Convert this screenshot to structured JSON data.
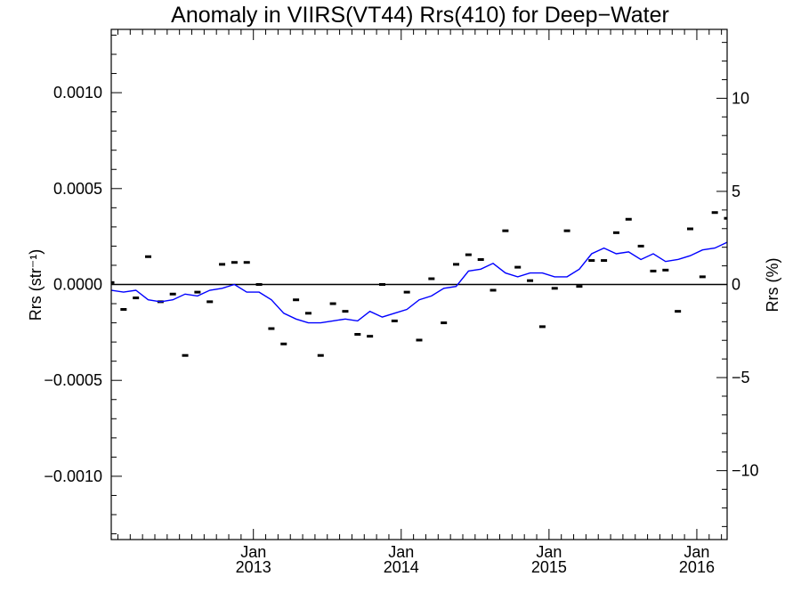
{
  "chart_data": {
    "type": "scatter",
    "title": "Anomaly in VIIRS(VT44) Rrs(410) for Deep−Water",
    "ylabel": "Rrs (str⁻¹)",
    "ylabel_right": "Rrs (%)",
    "xlim": [
      "2012-01-15",
      "2016-03-15"
    ],
    "ylim": [
      -0.00133,
      0.00133
    ],
    "ylim_right": [
      -13.7,
      13.7
    ],
    "x_ticks": [
      {
        "date": "2013-01-01",
        "label_month": "Jan",
        "label_year": "2013"
      },
      {
        "date": "2014-01-01",
        "label_month": "Jan",
        "label_year": "2014"
      },
      {
        "date": "2015-01-01",
        "label_month": "Jan",
        "label_year": "2015"
      },
      {
        "date": "2016-01-01",
        "label_month": "Jan",
        "label_year": "2016"
      }
    ],
    "y_ticks": [
      {
        "value": 0.001,
        "label": "0.0010"
      },
      {
        "value": 0.0005,
        "label": "0.0005"
      },
      {
        "value": 0,
        "label": "0.0000"
      },
      {
        "value": -0.0005,
        "label": "−0.0005"
      },
      {
        "value": -0.001,
        "label": "−0.0010"
      }
    ],
    "y_ticks_right": [
      {
        "value": 10,
        "label": "10"
      },
      {
        "value": 5,
        "label": "5"
      },
      {
        "value": 0,
        "label": "0"
      },
      {
        "value": -5,
        "label": "−5"
      },
      {
        "value": -10,
        "label": "−10"
      }
    ],
    "reference_line": 0,
    "grid": false,
    "series": [
      {
        "kind": "points",
        "color": "#000000",
        "x": [
          "2012-01",
          "2012-02",
          "2012-03",
          "2012-04",
          "2012-05",
          "2012-06",
          "2012-07",
          "2012-08",
          "2012-09",
          "2012-10",
          "2012-11",
          "2012-12",
          "2013-01",
          "2013-02",
          "2013-03",
          "2013-04",
          "2013-05",
          "2013-06",
          "2013-07",
          "2013-08",
          "2013-09",
          "2013-10",
          "2013-11",
          "2013-12",
          "2014-01",
          "2014-02",
          "2014-03",
          "2014-04",
          "2014-05",
          "2014-06",
          "2014-07",
          "2014-08",
          "2014-09",
          "2014-10",
          "2014-11",
          "2014-12",
          "2015-01",
          "2015-02",
          "2015-03",
          "2015-04",
          "2015-05",
          "2015-06",
          "2015-07",
          "2015-08",
          "2015-09",
          "2015-10",
          "2015-11",
          "2015-12",
          "2016-01",
          "2016-02",
          "2016-03"
        ],
        "y": [
          1e-05,
          -0.00013,
          -7e-05,
          0.000145,
          -9e-05,
          -5e-05,
          -0.00037,
          -4e-05,
          -9e-05,
          0.000105,
          0.000115,
          0.000115,
          0,
          -0.00023,
          -0.00031,
          -8e-05,
          -0.00015,
          -0.00037,
          -0.0001,
          -0.00014,
          -0.00026,
          -0.00027,
          0,
          -0.00019,
          -4e-05,
          -0.00029,
          3e-05,
          -0.0002,
          0.000105,
          0.000155,
          0.00013,
          -3e-05,
          0.00028,
          9e-05,
          2e-05,
          -0.00022,
          -2e-05,
          0.00028,
          -1e-05,
          0.000125,
          0.000125,
          0.00027,
          0.00034,
          0.0002,
          7e-05,
          7.5e-05,
          -0.00014,
          0.00029,
          4e-05,
          0.000375,
          0.000345
        ]
      },
      {
        "kind": "line",
        "color": "#0000ff",
        "x": [
          "2012-01",
          "2012-02",
          "2012-03",
          "2012-04",
          "2012-05",
          "2012-06",
          "2012-07",
          "2012-08",
          "2012-09",
          "2012-10",
          "2012-11",
          "2012-12",
          "2013-01",
          "2013-02",
          "2013-03",
          "2013-04",
          "2013-05",
          "2013-06",
          "2013-07",
          "2013-08",
          "2013-09",
          "2013-10",
          "2013-11",
          "2013-12",
          "2014-01",
          "2014-02",
          "2014-03",
          "2014-04",
          "2014-05",
          "2014-06",
          "2014-07",
          "2014-08",
          "2014-09",
          "2014-10",
          "2014-11",
          "2014-12",
          "2015-01",
          "2015-02",
          "2015-03",
          "2015-04",
          "2015-05",
          "2015-06",
          "2015-07",
          "2015-08",
          "2015-09",
          "2015-10",
          "2015-11",
          "2015-12",
          "2016-01",
          "2016-02",
          "2016-03"
        ],
        "y": [
          -3e-05,
          -4e-05,
          -3e-05,
          -8e-05,
          -9e-05,
          -8e-05,
          -5e-05,
          -6e-05,
          -3e-05,
          -2e-05,
          0,
          -4e-05,
          -4e-05,
          -8e-05,
          -0.00015,
          -0.00018,
          -0.0002,
          -0.0002,
          -0.00019,
          -0.00018,
          -0.00019,
          -0.00014,
          -0.00017,
          -0.00015,
          -0.00013,
          -8e-05,
          -6e-05,
          -2e-05,
          -1e-05,
          7e-05,
          8e-05,
          0.00011,
          6e-05,
          4e-05,
          6e-05,
          6e-05,
          4e-05,
          4e-05,
          8e-05,
          0.00016,
          0.00019,
          0.00016,
          0.00017,
          0.00013,
          0.00016,
          0.00012,
          0.00013,
          0.00015,
          0.00018,
          0.00019,
          0.00022
        ]
      }
    ]
  }
}
